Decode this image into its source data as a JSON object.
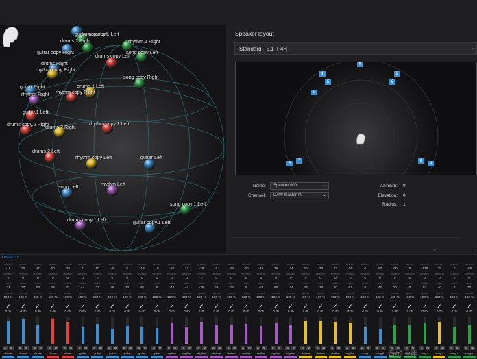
{
  "panel": {
    "speaker_layout_title": "Speaker layout",
    "preset": "Standard - 5.1 + 4H"
  },
  "objects": [
    {
      "label": "guitar copy Left"
    },
    {
      "label": "drums.1 Right"
    },
    {
      "label": "drums copy.1 Left"
    },
    {
      "label": "guitar copy Right"
    },
    {
      "label": "rhythm.1 Right"
    },
    {
      "label": "song copy Left"
    },
    {
      "label": "drums copy Left"
    },
    {
      "label": "drums Right"
    },
    {
      "label": "song copy Right"
    },
    {
      "label": "rhythm copy Right"
    },
    {
      "label": "guitar Right"
    },
    {
      "label": "drums.1 Left"
    },
    {
      "label": "rhythm copy Right"
    },
    {
      "label": "rhythm Right"
    },
    {
      "label": "guitar.1 Left"
    },
    {
      "label": "rhythm copy.1 Left"
    },
    {
      "label": "drums copy.2 Right"
    },
    {
      "label": "drums.2 Right"
    },
    {
      "label": "drums.2 Left"
    },
    {
      "label": "rhythm copy Left"
    },
    {
      "label": "guitar Left"
    },
    {
      "label": "rhythm Left"
    },
    {
      "label": "song Left"
    },
    {
      "label": "song copy.1 Left"
    },
    {
      "label": "drums copy.1 Left"
    },
    {
      "label": "guitar copy.1 Left"
    }
  ],
  "speakers": [
    "0",
    "1",
    "2",
    "5",
    "6",
    "9",
    "3",
    "7",
    "8",
    "4"
  ],
  "properties": {
    "name_label": "Name:",
    "name_value": "Speaker #00",
    "channel_label": "Channel:",
    "channel_value": "DAW master #0",
    "azimuth_label": "Azimuth:",
    "azimuth_value": "0",
    "elevation_label": "Elevation:",
    "elevation_value": "0",
    "radius_label": "Radius:",
    "radius_value": "1"
  },
  "mixer": {
    "title": "OBJECTS",
    "row_labels": {
      "azimuth": "azimuth",
      "elevation": "elevation",
      "radius": "radius",
      "spread": "spread"
    },
    "solo_label": "S",
    "mute_label": "M",
    "strips": [
      {
        "name": "drums",
        "az": "-19",
        "el": "0",
        "rad": "37",
        "spread": "100 %",
        "gain": "0 db",
        "color": "#3f8fd0",
        "level": 0.85
      },
      {
        "name": "drums",
        "az": "30",
        "el": "0",
        "rad": "37",
        "spread": "100 %",
        "gain": "-4 db",
        "color": "#3f8fd0",
        "level": 0.9
      },
      {
        "name": "drums",
        "az": "-60",
        "el": "0",
        "rad": "53",
        "spread": "100 %",
        "gain": "0 db",
        "color": "#3f8fd0",
        "level": 0.7
      },
      {
        "name": "drums",
        "az": "60",
        "el": "0",
        "rad": "53",
        "spread": "100 %",
        "gain": "0 db",
        "color": "#e0443c",
        "level": 0.92
      },
      {
        "name": "drums",
        "az": "-76",
        "el": "0",
        "rad": "32",
        "spread": "100 %",
        "gain": "0 db",
        "color": "#e0443c",
        "level": 0.8
      },
      {
        "name": "guitar",
        "az": "1",
        "el": "0",
        "rad": "44",
        "spread": "100 %",
        "gain": "0 db",
        "color": "#3f8fd0",
        "level": 0.6
      },
      {
        "name": "guitar",
        "az": "60",
        "el": "0",
        "rad": "27",
        "spread": "100 %",
        "gain": "0 db",
        "color": "#3f8fd0",
        "level": 0.72
      },
      {
        "name": "guitar",
        "az": "-8",
        "el": "0",
        "rad": "48",
        "spread": "100 %",
        "gain": "0 db",
        "color": "#3f8fd0",
        "level": 0.55
      },
      {
        "name": "guitar",
        "az": "6",
        "el": "0",
        "rad": "33",
        "spread": "100 %",
        "gain": "0 db",
        "color": "#3f8fd0",
        "level": 0.65
      },
      {
        "name": "guitar",
        "az": "-19",
        "el": "0",
        "rad": "48",
        "spread": "100 %",
        "gain": "0 db",
        "color": "#3f8fd0",
        "level": 0.6
      },
      {
        "name": "guitar",
        "az": "19",
        "el": "0",
        "rad": "5",
        "spread": "100 %",
        "gain": "0 db",
        "color": "#3f8fd0",
        "level": 0.58
      },
      {
        "name": "rhythm",
        "az": "-10",
        "el": "0",
        "rad": "-43",
        "spread": "100 %",
        "gain": "0 db",
        "color": "#a45cc0",
        "level": 0.75
      },
      {
        "name": "rhythm",
        "az": "74",
        "el": "0",
        "rad": "44",
        "spread": "100 %",
        "gain": "0 db",
        "color": "#a45cc0",
        "level": 0.62
      },
      {
        "name": "rhythm",
        "az": "-28",
        "el": "0",
        "rad": "-38",
        "spread": "100 %",
        "gain": "0 db",
        "color": "#a45cc0",
        "level": 0.8
      },
      {
        "name": "rhythm",
        "az": "6",
        "el": "0",
        "rad": "29",
        "spread": "100 %",
        "gain": "0 db",
        "color": "#a45cc0",
        "level": 0.7
      },
      {
        "name": "rhythm",
        "az": "-19",
        "el": "0",
        "rad": "-12",
        "spread": "100 %",
        "gain": "0 db",
        "color": "#a45cc0",
        "level": 0.68
      },
      {
        "name": "rhythm",
        "az": "-30",
        "el": "0",
        "rad": "5",
        "spread": "100 %",
        "gain": "0 db",
        "color": "#a45cc0",
        "level": 0.72
      },
      {
        "name": "rhythm",
        "az": "-19",
        "el": "0",
        "rad": "-63",
        "spread": "100 %",
        "gain": "0 db",
        "color": "#a45cc0",
        "level": 0.66
      },
      {
        "name": "rhythm",
        "az": "79",
        "el": "0",
        "rad": "68",
        "spread": "100 %",
        "gain": "0 db",
        "color": "#a45cc0",
        "level": 0.75
      },
      {
        "name": "rhythm",
        "az": "-24",
        "el": "0",
        "rad": "-24",
        "spread": "100 %",
        "gain": "0 db",
        "color": "#a45cc0",
        "level": 0.7
      },
      {
        "name": "rhythm",
        "az": "20",
        "el": "0",
        "rad": "43",
        "spread": "100 %",
        "gain": "0 db",
        "color": "#e8c020",
        "level": 0.86
      },
      {
        "name": "rhythm",
        "az": "-20",
        "el": "0",
        "rad": "-28",
        "spread": "100 %",
        "gain": "0 db",
        "color": "#e8c020",
        "level": 0.82
      },
      {
        "name": "rhythm",
        "az": "53",
        "el": "0",
        "rad": "70",
        "spread": "100 %",
        "gain": "0 db",
        "color": "#e8c020",
        "level": 0.8
      },
      {
        "name": "rhythm",
        "az": "-59",
        "el": "0",
        "rad": "61",
        "spread": "100 %",
        "gain": "0 db",
        "color": "#e8c020",
        "level": 0.78
      },
      {
        "name": "song",
        "az": "0",
        "el": "0",
        "rad": "0",
        "spread": "100 %",
        "gain": "0 db",
        "color": "#3f8fd0",
        "level": 0.6
      },
      {
        "name": "song fil",
        "az": "97",
        "el": "0",
        "rad": "42",
        "spread": "100 %",
        "gain": "0 db",
        "color": "#3f8fd0",
        "level": 0.55
      },
      {
        "name": "song fil",
        "az": "-60",
        "el": "0",
        "rad": "20",
        "spread": "100 %",
        "gain": "0 db",
        "color": "#2e9e48",
        "level": 0.7
      },
      {
        "name": "song c",
        "az": "0",
        "el": "0",
        "rad": "0",
        "spread": "100 %",
        "gain": "0 db",
        "color": "#2e9e48",
        "level": 0.68
      },
      {
        "name": "song c",
        "az": "-128",
        "el": "0",
        "rad": "62",
        "spread": "100 %",
        "gain": "0 db",
        "color": "#2e9e48",
        "level": 0.75
      },
      {
        "name": "song c",
        "az": "79",
        "el": "0",
        "rad": "40",
        "spread": "100 %",
        "gain": "0 db",
        "color": "#e8c020",
        "level": 0.8
      },
      {
        "name": "song c",
        "az": "0",
        "el": "0",
        "rad": "0",
        "spread": "100 %",
        "gain": "0 db",
        "color": "#2e9e48",
        "level": 0.62
      },
      {
        "name": "song c",
        "az": "-89",
        "el": "0",
        "rad": "70",
        "spread": "100 %",
        "gain": "0 db",
        "color": "#2e9e48",
        "level": 0.7
      }
    ]
  },
  "watermark": "音频应用"
}
